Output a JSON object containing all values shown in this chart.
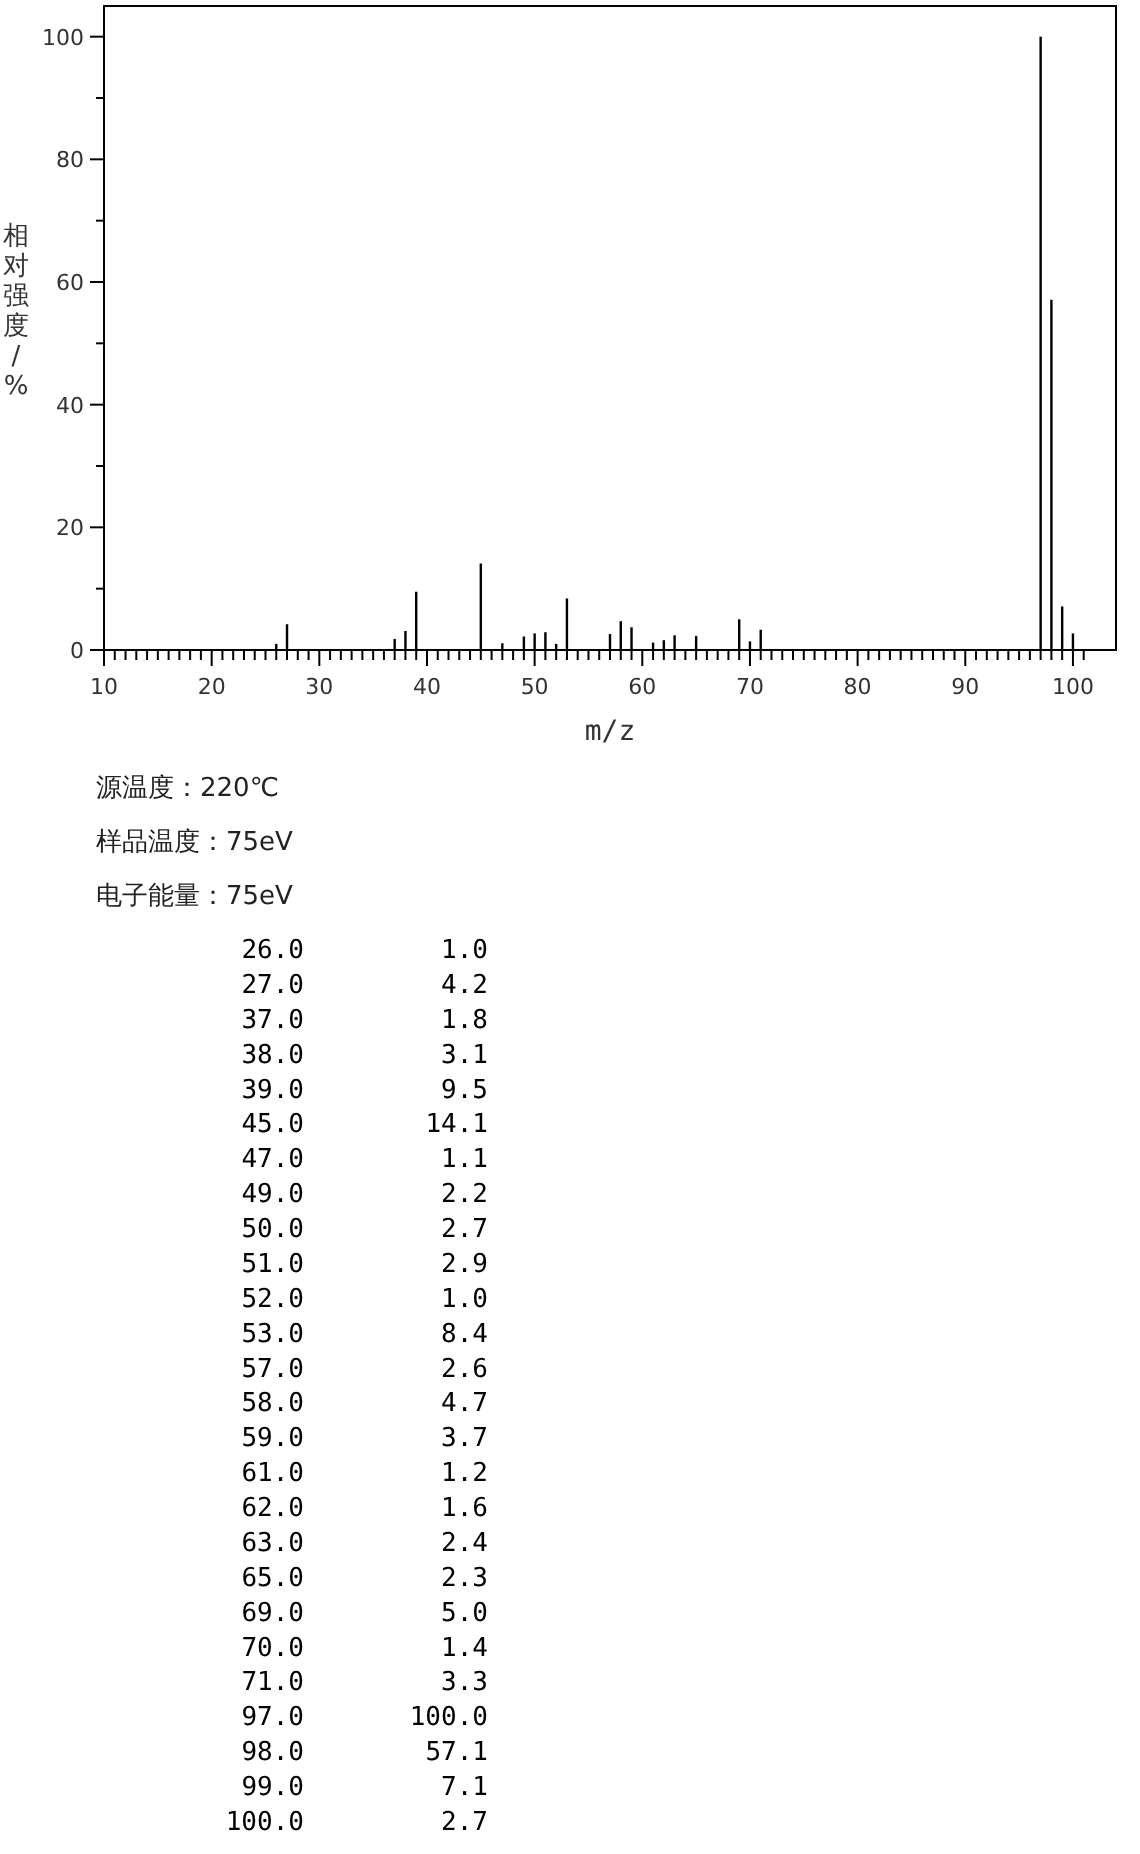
{
  "chart_data": {
    "type": "bar",
    "xlabel": "m/z",
    "ylabel": "相对强度/%",
    "color": "#000000",
    "x": [
      26,
      27,
      37,
      38,
      39,
      45,
      47,
      49,
      50,
      51,
      52,
      53,
      57,
      58,
      59,
      61,
      62,
      63,
      65,
      69,
      70,
      71,
      97,
      98,
      99,
      100
    ],
    "values": [
      1.0,
      4.2,
      1.8,
      3.1,
      9.5,
      14.1,
      1.1,
      2.2,
      2.7,
      2.9,
      1.0,
      8.4,
      2.6,
      4.7,
      3.7,
      1.2,
      1.6,
      2.4,
      2.3,
      5.0,
      1.4,
      3.3,
      100.0,
      57.1,
      7.1,
      2.7
    ],
    "xlim": [
      10,
      104
    ],
    "ylim": [
      0,
      105
    ],
    "xticks": [
      10,
      {
        "value": 11,
        "label": null
      },
      {
        "value": 12,
        "label": null
      },
      {
        "value": 13,
        "label": null
      },
      {
        "value": 14,
        "label": null
      },
      {
        "value": 15,
        "label": null
      },
      {
        "value": 16,
        "label": null
      },
      {
        "value": 17,
        "label": null
      },
      {
        "value": 18,
        "label": null
      },
      {
        "value": 19,
        "label": null
      },
      20,
      {
        "value": 21,
        "label": null
      },
      {
        "value": 22,
        "label": null
      },
      {
        "value": 23,
        "label": null
      },
      {
        "value": 24,
        "label": null
      },
      {
        "value": 25,
        "label": null
      },
      {
        "value": 26,
        "label": null
      },
      {
        "value": 27,
        "label": null
      },
      {
        "value": 28,
        "label": null
      },
      {
        "value": 29,
        "label": null
      },
      30,
      {
        "value": 31,
        "label": null
      },
      {
        "value": 32,
        "label": null
      },
      {
        "value": 33,
        "label": null
      },
      {
        "value": 34,
        "label": null
      },
      {
        "value": 35,
        "label": null
      },
      {
        "value": 36,
        "label": null
      },
      {
        "value": 37,
        "label": null
      },
      {
        "value": 38,
        "label": null
      },
      {
        "value": 39,
        "label": null
      },
      40,
      {
        "value": 41,
        "label": null
      },
      {
        "value": 42,
        "label": null
      },
      {
        "value": 43,
        "label": null
      },
      {
        "value": 44,
        "label": null
      },
      {
        "value": 45,
        "label": null
      },
      {
        "value": 46,
        "label": null
      },
      {
        "value": 47,
        "label": null
      },
      {
        "value": 48,
        "label": null
      },
      {
        "value": 49,
        "label": null
      },
      50,
      {
        "value": 51,
        "label": null
      },
      {
        "value": 52,
        "label": null
      },
      {
        "value": 53,
        "label": null
      },
      {
        "value": 54,
        "label": null
      },
      {
        "value": 55,
        "label": null
      },
      {
        "value": 56,
        "label": null
      },
      {
        "value": 57,
        "label": null
      },
      {
        "value": 58,
        "label": null
      },
      {
        "value": 59,
        "label": null
      },
      60,
      {
        "value": 61,
        "label": null
      },
      {
        "value": 62,
        "label": null
      },
      {
        "value": 63,
        "label": null
      },
      {
        "value": 64,
        "label": null
      },
      {
        "value": 65,
        "label": null
      },
      {
        "value": 66,
        "label": null
      },
      {
        "value": 67,
        "label": null
      },
      {
        "value": 68,
        "label": null
      },
      {
        "value": 69,
        "label": null
      },
      70,
      {
        "value": 71,
        "label": null
      },
      {
        "value": 72,
        "label": null
      },
      {
        "value": 73,
        "label": null
      },
      {
        "value": 74,
        "label": null
      },
      {
        "value": 75,
        "label": null
      },
      {
        "value": 76,
        "label": null
      },
      {
        "value": 77,
        "label": null
      },
      {
        "value": 78,
        "label": null
      },
      {
        "value": 79,
        "label": null
      },
      80,
      {
        "value": 81,
        "label": null
      },
      {
        "value": 82,
        "label": null
      },
      {
        "value": 83,
        "label": null
      },
      {
        "value": 84,
        "label": null
      },
      {
        "value": 85,
        "label": null
      },
      {
        "value": 86,
        "label": null
      },
      {
        "value": 87,
        "label": null
      },
      {
        "value": 88,
        "label": null
      },
      {
        "value": 89,
        "label": null
      },
      90,
      {
        "value": 91,
        "label": null
      },
      {
        "value": 92,
        "label": null
      },
      {
        "value": 93,
        "label": null
      },
      {
        "value": 94,
        "label": null
      },
      {
        "value": 95,
        "label": null
      },
      {
        "value": 96,
        "label": null
      },
      {
        "value": 97,
        "label": null
      },
      {
        "value": 98,
        "label": null
      },
      {
        "value": 99,
        "label": null
      },
      100,
      {
        "value": 101,
        "label": null
      }
    ],
    "yticks": [
      0,
      {
        "value": 10,
        "label": null
      },
      20,
      {
        "value": 30,
        "label": null
      },
      40,
      {
        "value": 50,
        "label": null
      },
      60,
      {
        "value": 70,
        "label": null
      },
      80,
      {
        "value": 90,
        "label": null
      },
      100
    ],
    "annotations": [
      "源温度：220℃",
      "样品温度：75eV",
      "电子能量：75eV",
      "26.0",
      "1.0",
      "27.0",
      "4.2",
      "37.0",
      "1.8",
      "38.0",
      "3.1",
      "39.0",
      "9.5",
      "45.0",
      "14.1",
      "47.0",
      "1.1",
      "49.0",
      "2.2",
      "50.0",
      "2.7",
      "51.0",
      "2.9",
      "52.0",
      "1.0",
      "53.0",
      "8.4",
      "57.0",
      "2.6",
      "58.0",
      "4.7",
      "59.0",
      "3.7",
      "61.0",
      "1.2",
      "62.0",
      "1.6",
      "63.0",
      "2.4",
      "65.0",
      "2.3",
      "69.0",
      "5.0",
      "70.0",
      "1.4",
      "71.0",
      "3.3",
      "97.0",
      "100.0",
      "98.0",
      "57.1",
      "99.0",
      "7.1",
      "100.0",
      "2.7"
    ]
  }
}
